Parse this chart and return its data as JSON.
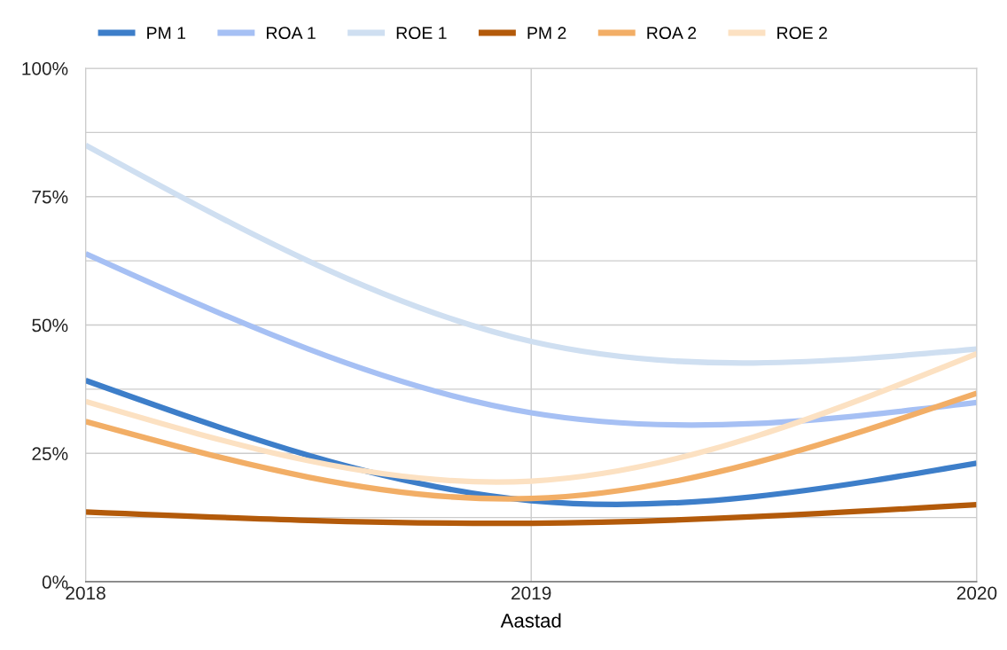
{
  "chart_data": {
    "type": "line",
    "xlabel": "Aastad",
    "x": [
      2018,
      2019,
      2020
    ],
    "series": [
      {
        "name": "PM 1",
        "color": "#3d7ec9",
        "values": [
          39.2,
          15.8,
          23.1
        ]
      },
      {
        "name": "ROA 1",
        "color": "#a6c0f4",
        "values": [
          63.9,
          32.9,
          34.9
        ]
      },
      {
        "name": "ROE 1",
        "color": "#cfdff1",
        "values": [
          85.0,
          46.8,
          45.3
        ]
      },
      {
        "name": "PM 2",
        "color": "#b35a0a",
        "values": [
          13.6,
          11.4,
          15.0
        ]
      },
      {
        "name": "ROA 2",
        "color": "#f2ae66",
        "values": [
          31.2,
          16.2,
          36.7
        ]
      },
      {
        "name": "ROE 2",
        "color": "#fce1c2",
        "values": [
          35.1,
          19.6,
          44.4
        ]
      }
    ],
    "xlim": [
      2018,
      2020
    ],
    "xticks": [
      2018,
      2019,
      2020
    ],
    "ylim": [
      0,
      100
    ],
    "yticks": [
      {
        "value": 0,
        "label": "0%"
      },
      {
        "value": 12.5,
        "label": null
      },
      {
        "value": 25,
        "label": "25%"
      },
      {
        "value": 37.5,
        "label": null
      },
      {
        "value": 50,
        "label": "50%"
      },
      {
        "value": 62.5,
        "label": null
      },
      {
        "value": 75,
        "label": "75%"
      },
      {
        "value": 87.5,
        "label": null
      },
      {
        "value": 100,
        "label": "100%"
      }
    ],
    "grid": true,
    "legend": "top",
    "line_style": "solid",
    "marker": "none"
  }
}
